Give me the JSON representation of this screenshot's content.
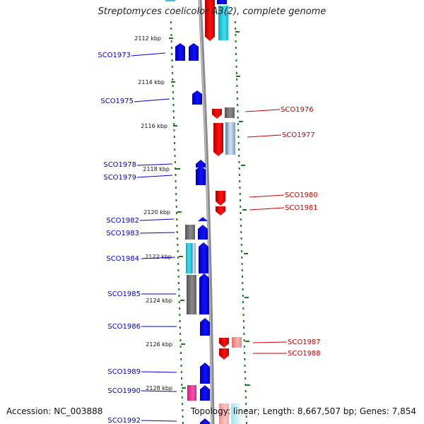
{
  "title": "Streptomyces coelicolor A3(2), complete genome",
  "footer": {
    "accession": "Accession: NC_003888",
    "topology": "Topology: linear; Length: 8,667,507 bp; Genes: 7,854"
  },
  "scale_ticks": [
    {
      "label": "2112 kbp",
      "kbp": 2112
    },
    {
      "label": "2114 kbp",
      "kbp": 2114
    },
    {
      "label": "2116 kbp",
      "kbp": 2116
    },
    {
      "label": "2118 kbp",
      "kbp": 2118
    },
    {
      "label": "2120 kbp",
      "kbp": 2120
    },
    {
      "label": "2122 kbp",
      "kbp": 2122
    },
    {
      "label": "2124 kbp",
      "kbp": 2124
    },
    {
      "label": "2126 kbp",
      "kbp": 2126
    },
    {
      "label": "2128 kbp",
      "kbp": 2128
    }
  ],
  "genes_left": [
    "SCO1973",
    "SCO1975",
    "SCO1978",
    "SCO1979",
    "SCO1982",
    "SCO1983",
    "SCO1984",
    "SCO1985",
    "SCO1986",
    "SCO1989",
    "SCO1990",
    "SCO1992"
  ],
  "genes_right": [
    "SCO1976",
    "SCO1977",
    "SCO1980",
    "SCO1981",
    "SCO1987",
    "SCO1988"
  ],
  "colors": {
    "forward_strand": "#0000ee",
    "reverse_strand": "#ee0000",
    "grey": "#6e6e6e",
    "cyan": "#19c8d8",
    "pink": "#ff3fa0",
    "backbone": "#8a8a8a",
    "tick": "#1a7a1a"
  }
}
